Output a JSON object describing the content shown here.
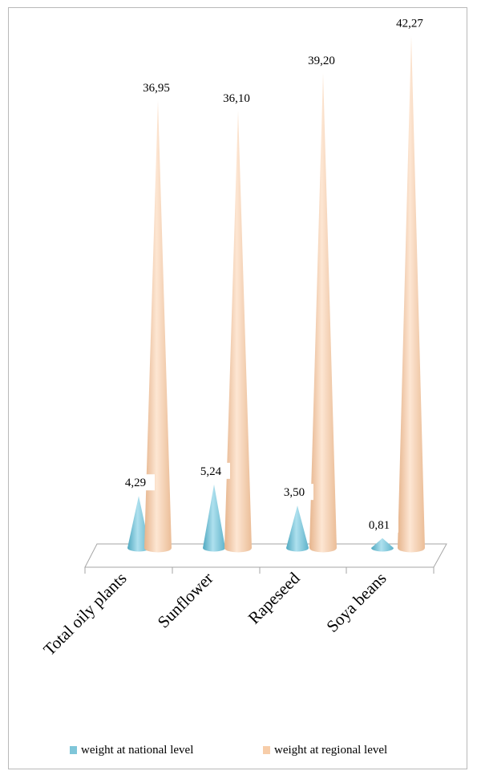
{
  "chart_data": {
    "type": "bar",
    "style": "3d-cone",
    "categories": [
      "Total oily plants",
      "Sunflower",
      "Rapeseed",
      "Soya beans"
    ],
    "series": [
      {
        "name": "weight at national level",
        "values": [
          4.29,
          5.24,
          3.5,
          0.81
        ],
        "labels": [
          "4,29",
          "5,24",
          "3,50",
          "0,81"
        ],
        "color": "#7fc6d9"
      },
      {
        "name": "weight at regional level",
        "values": [
          36.95,
          36.1,
          39.2,
          42.27
        ],
        "labels": [
          "36,95",
          "36,10",
          "39,20",
          "42,27"
        ],
        "color": "#f7cda9"
      }
    ],
    "title": "",
    "xlabel": "",
    "ylabel": "",
    "ylim": [
      0,
      45
    ],
    "grid": false,
    "legend": "bottom"
  }
}
